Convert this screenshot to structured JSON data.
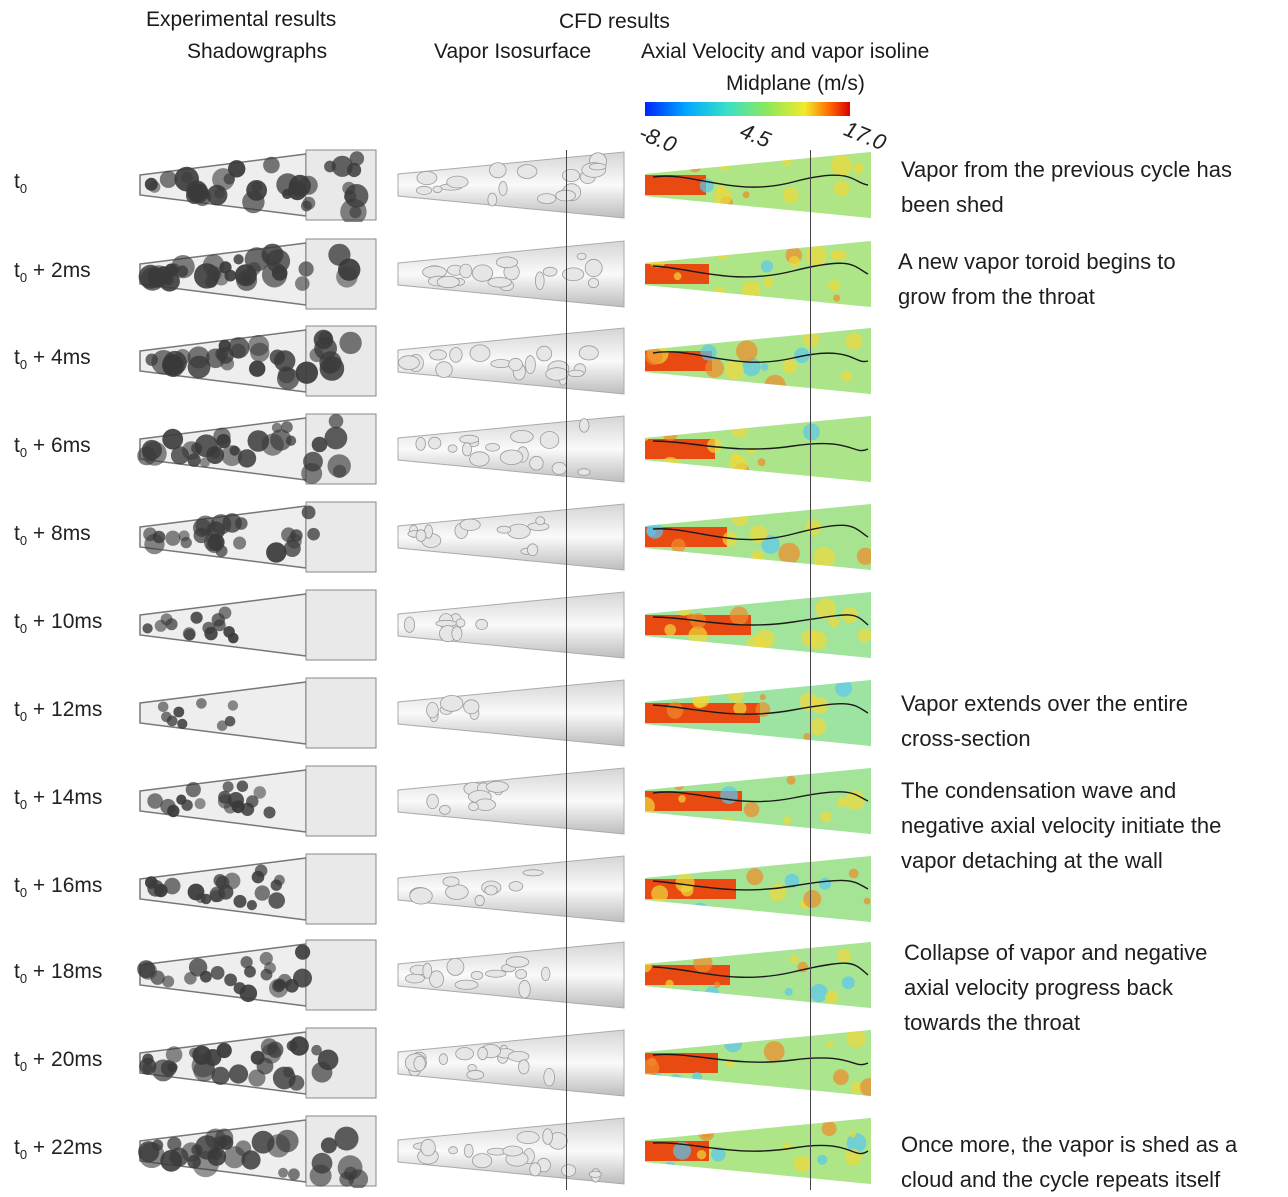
{
  "headers": {
    "experimental": "Experimental results",
    "shadowgraphs": "Shadowgraphs",
    "cfd": "CFD results",
    "iso": "Vapor Isosurface",
    "vel": "Axial Velocity and vapor isoline",
    "midplane": "Midplane (m/s)"
  },
  "colorbar": {
    "ticks": [
      "-8.0",
      "4.5",
      "17.0"
    ],
    "min": -8.0,
    "max": 17.0
  },
  "colors": {
    "low": "#0026ff",
    "mid": "#8ee85a",
    "high": "#d80000",
    "vapor": "#3a3a3a"
  },
  "rows": [
    {
      "base": "t",
      "sub": "0",
      "suffix": "",
      "vapor": 0.95
    },
    {
      "base": "t",
      "sub": "0",
      "suffix": " + 2ms",
      "vapor": 0.9
    },
    {
      "base": "t",
      "sub": "0",
      "suffix": " + 4ms",
      "vapor": 0.85
    },
    {
      "base": "t",
      "sub": "0",
      "suffix": " + 6ms",
      "vapor": 0.8
    },
    {
      "base": "t",
      "sub": "0",
      "suffix": " + 8ms",
      "vapor": 0.6
    },
    {
      "base": "t",
      "sub": "0",
      "suffix": " + 10ms",
      "vapor": 0.2
    },
    {
      "base": "t",
      "sub": "0",
      "suffix": " + 12ms",
      "vapor": 0.05
    },
    {
      "base": "t",
      "sub": "0",
      "suffix": " + 14ms",
      "vapor": 0.35
    },
    {
      "base": "t",
      "sub": "0",
      "suffix": " + 16ms",
      "vapor": 0.45
    },
    {
      "base": "t",
      "sub": "0",
      "suffix": " + 18ms",
      "vapor": 0.55
    },
    {
      "base": "t",
      "sub": "0",
      "suffix": " + 20ms",
      "vapor": 0.75
    },
    {
      "base": "t",
      "sub": "0",
      "suffix": " + 22ms",
      "vapor": 0.9
    }
  ],
  "notes": [
    {
      "lines": [
        "Vapor from the previous cycle has",
        "been shed"
      ]
    },
    {
      "lines": [
        "A new vapor toroid begins to",
        "grow from the throat"
      ]
    },
    {
      "lines": [
        "Vapor extends over the entire",
        "cross-section"
      ]
    },
    {
      "lines": [
        "The condensation wave and",
        "negative axial velocity initiate the",
        "vapor detaching at the wall"
      ]
    },
    {
      "lines": [
        "Collapse of vapor and negative",
        "axial velocity progress back",
        "towards the throat"
      ]
    },
    {
      "lines": [
        "Once more, the vapor is shed as a",
        "cloud and the cycle repeats itself"
      ]
    }
  ]
}
